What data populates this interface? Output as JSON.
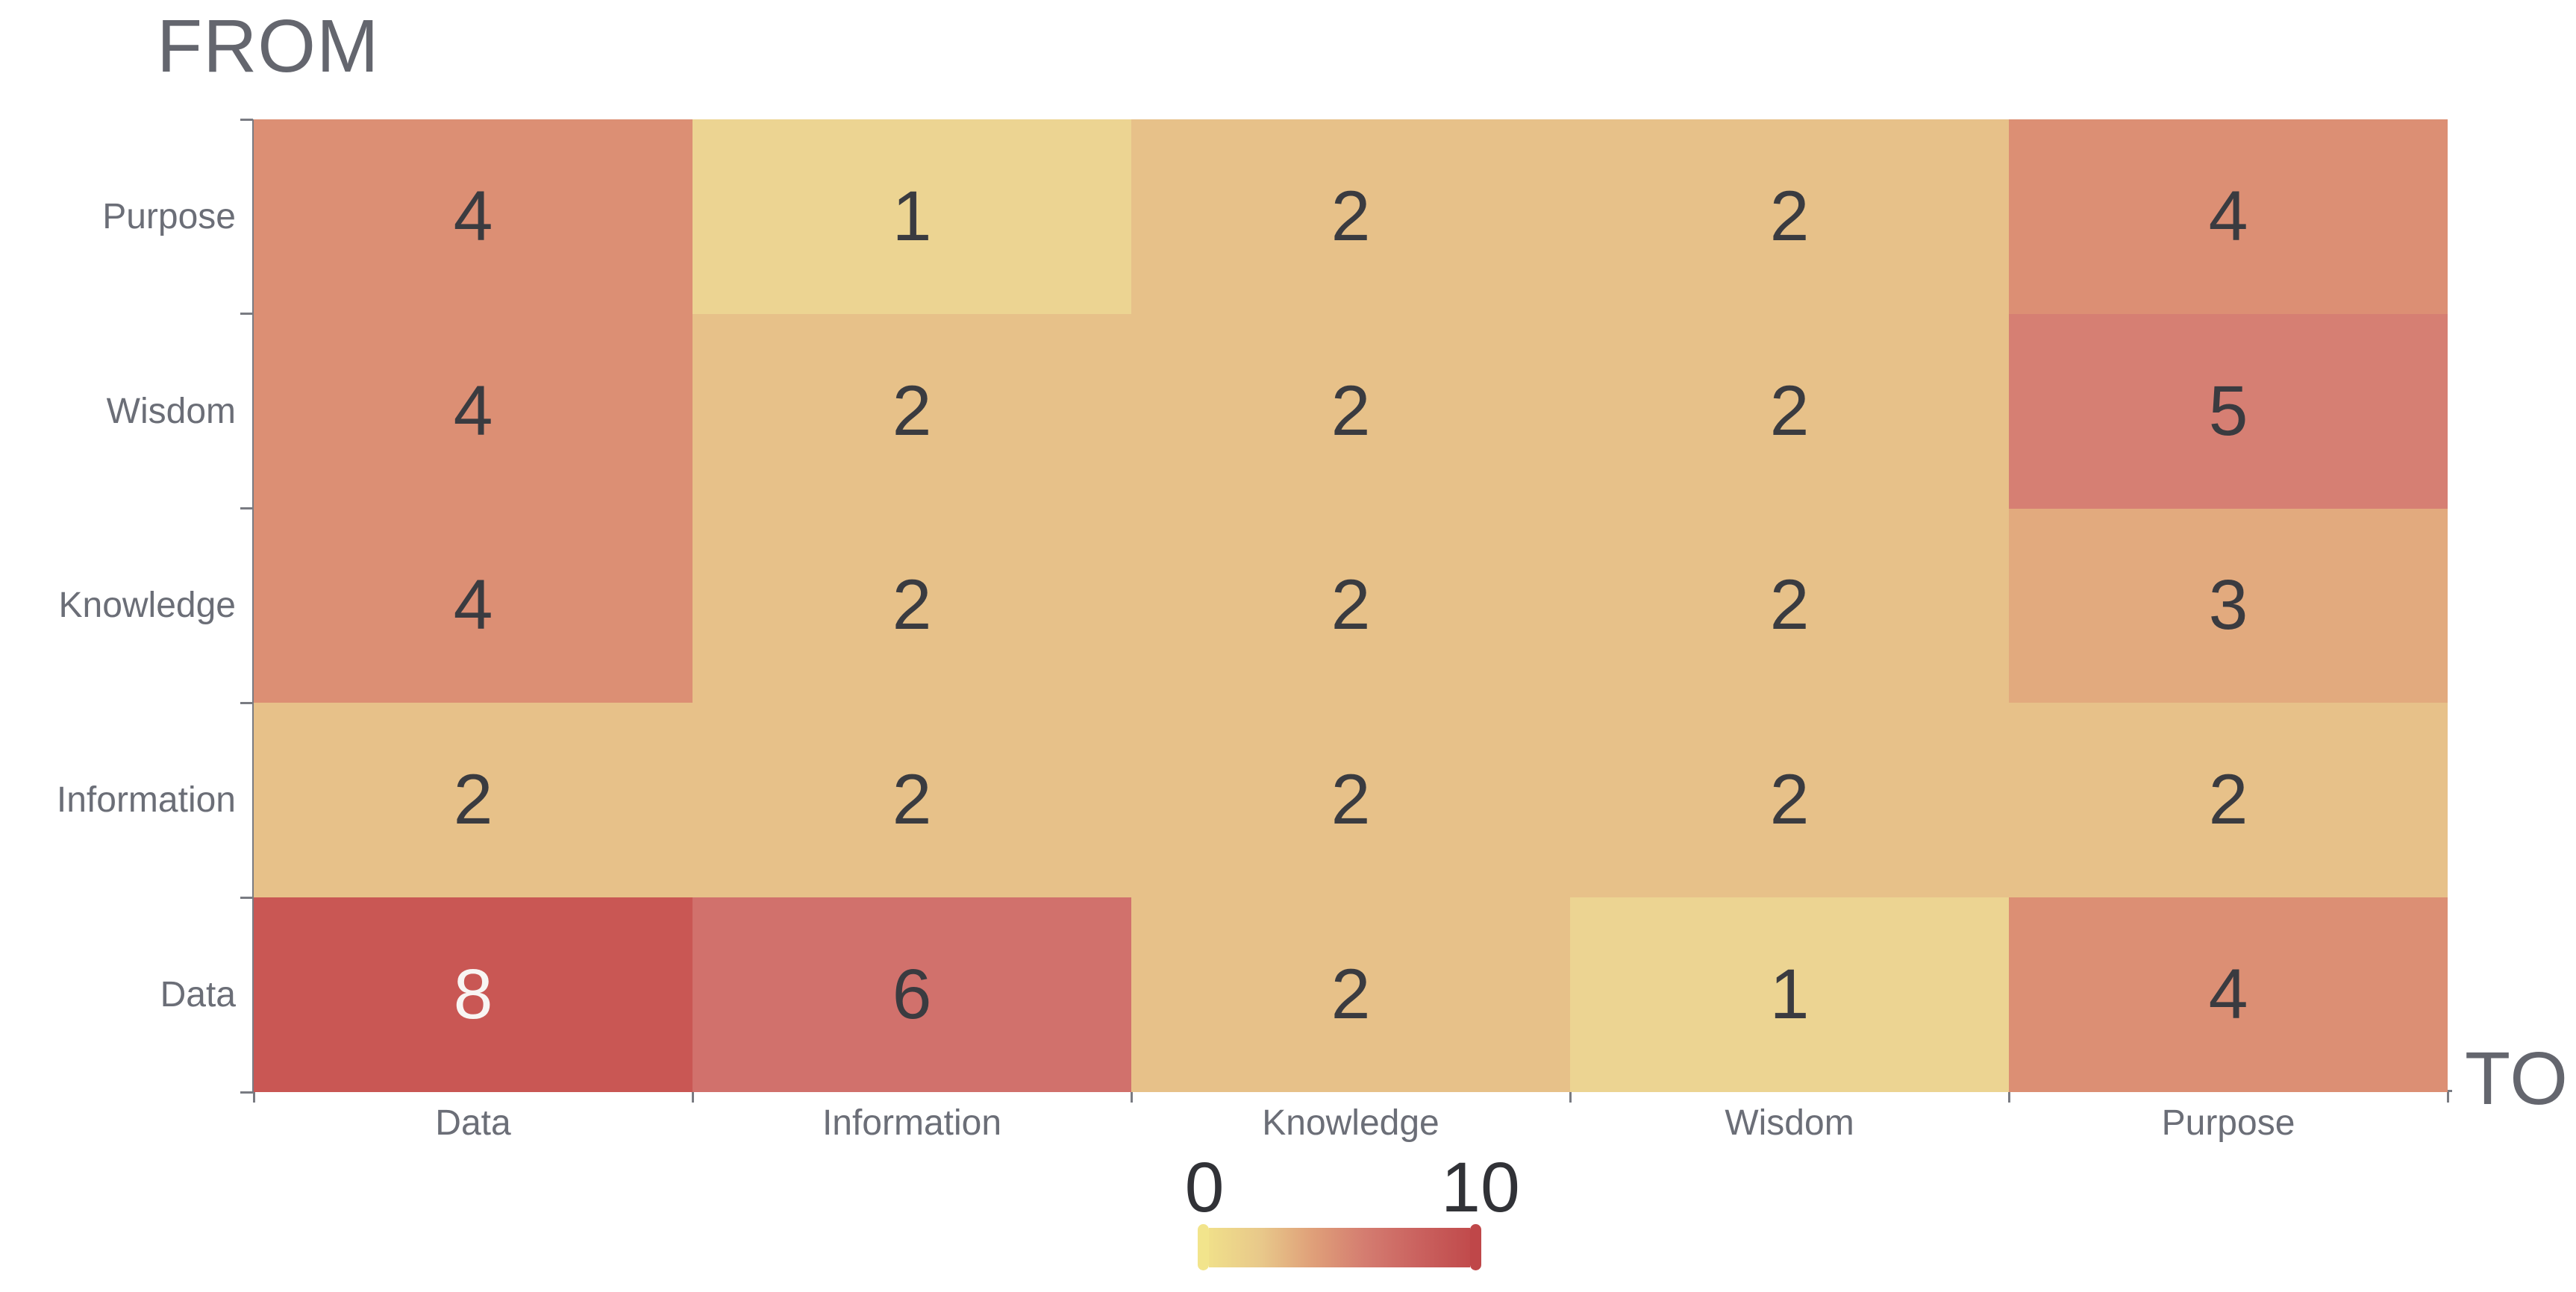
{
  "chart_data": {
    "type": "heatmap",
    "row_axis_title": "FROM",
    "col_axis_title": "TO",
    "rows": [
      "Purpose",
      "Wisdom",
      "Knowledge",
      "Information",
      "Data"
    ],
    "columns": [
      "Data",
      "Information",
      "Knowledge",
      "Wisdom",
      "Purpose"
    ],
    "matrix": [
      [
        4,
        1,
        2,
        2,
        4
      ],
      [
        4,
        2,
        2,
        2,
        5
      ],
      [
        4,
        2,
        2,
        2,
        3
      ],
      [
        2,
        2,
        2,
        2,
        2
      ],
      [
        8,
        6,
        2,
        1,
        4
      ]
    ],
    "value_range": [
      0,
      10
    ],
    "legend": {
      "min_label": "0",
      "max_label": "10",
      "min_cap_color": "#F2E48C",
      "max_cap_color": "#BF4749",
      "gradient_stops": [
        "#F0DF8A",
        "#E8C88A",
        "#DF9F79",
        "#D47C70",
        "#CA625F",
        "#C14B4C"
      ]
    },
    "style": {
      "value_colors": {
        "1": "#ECD492",
        "2": "#E7C189",
        "3": "#E2AA7E",
        "4": "#DC8F74",
        "5": "#D67F73",
        "6": "#D1716C",
        "8": "#C95754"
      },
      "cell_text_color_dark": "#3A3B40",
      "cell_text_color_light": "#F8F5F3",
      "light_text_min_value": 7,
      "title_color": "#64666E",
      "axis_label_color": "#6B6E77",
      "axis_line_color": "#797B82",
      "legend_label_color": "#313237",
      "grid_on": false,
      "legend_position": "bottom-center"
    }
  }
}
